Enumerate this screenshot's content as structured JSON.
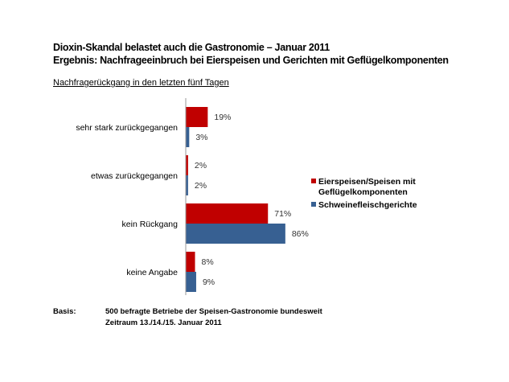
{
  "title_line1": "Dioxin-Skandal belastet auch die Gastronomie – Januar 2011",
  "title_line2": "Ergebnis: Nachfrageeinbruch bei Eierspeisen und Gerichten mit Geflügelkomponenten",
  "subtitle": "Nachfragerückgang in den letzten fünf Tagen",
  "footer": {
    "label": "Basis:",
    "line1": "500 befragte Betriebe der Speisen-Gastronomie bundesweit",
    "line2": "Zeitraum 13./14./15. Januar 2011"
  },
  "chart_data": {
    "type": "bar",
    "orientation": "horizontal",
    "categories": [
      "sehr stark zurückgegangen",
      "etwas zurückgegangen",
      "kein Rückgang",
      "keine Angabe"
    ],
    "series": [
      {
        "name": "Eierspeisen/Speisen mit Geflügelkomponenten",
        "legend_lines": [
          "Eierspeisen/Speisen mit",
          "Geflügelkomponenten"
        ],
        "values": [
          19,
          2,
          71,
          8
        ],
        "color": "#C00000"
      },
      {
        "name": "Schweinefleischgerichte",
        "legend_lines": [
          "Schweinefleischgerichte"
        ],
        "values": [
          3,
          2,
          86,
          9
        ],
        "color": "#376092"
      }
    ],
    "unit": "%",
    "legend_placement": "right",
    "grid": false
  }
}
